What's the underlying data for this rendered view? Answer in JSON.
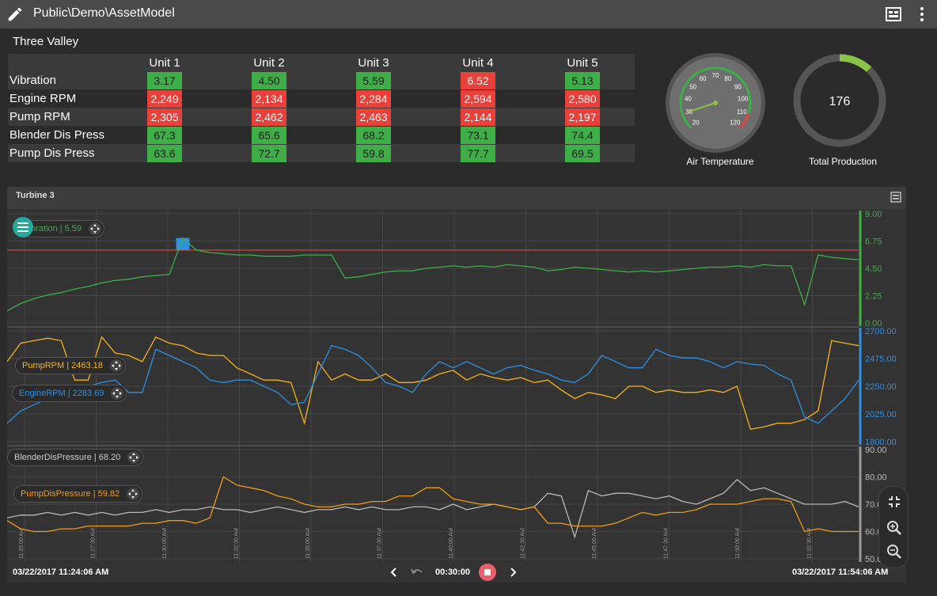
{
  "header": {
    "title": "Public\\Demo\\AssetModel"
  },
  "group_title": "Three Valley",
  "table": {
    "columns": [
      "Unit 1",
      "Unit 2",
      "Unit 3",
      "Unit 4",
      "Unit 5"
    ],
    "rows": [
      {
        "label": "Vibration",
        "cells": [
          {
            "v": "3.17",
            "s": "green"
          },
          {
            "v": "4.50",
            "s": "green"
          },
          {
            "v": "5.59",
            "s": "green"
          },
          {
            "v": "6.52",
            "s": "red"
          },
          {
            "v": "5.13",
            "s": "green"
          }
        ]
      },
      {
        "label": "Engine RPM",
        "cells": [
          {
            "v": "2,249",
            "s": "red"
          },
          {
            "v": "2,134",
            "s": "red"
          },
          {
            "v": "2,284",
            "s": "red"
          },
          {
            "v": "2,594",
            "s": "red"
          },
          {
            "v": "2,580",
            "s": "red"
          }
        ]
      },
      {
        "label": "Pump RPM",
        "cells": [
          {
            "v": "2,305",
            "s": "red"
          },
          {
            "v": "2,462",
            "s": "red"
          },
          {
            "v": "2,463",
            "s": "red"
          },
          {
            "v": "2,144",
            "s": "red"
          },
          {
            "v": "2,197",
            "s": "red"
          }
        ]
      },
      {
        "label": "Blender Dis Press",
        "cells": [
          {
            "v": "67.3",
            "s": "green"
          },
          {
            "v": "65.6",
            "s": "green"
          },
          {
            "v": "68.2",
            "s": "green"
          },
          {
            "v": "73.1",
            "s": "green"
          },
          {
            "v": "74.4",
            "s": "green"
          }
        ]
      },
      {
        "label": "Pump Dis Press",
        "cells": [
          {
            "v": "63.6",
            "s": "green"
          },
          {
            "v": "72.7",
            "s": "green"
          },
          {
            "v": "59.8",
            "s": "green"
          },
          {
            "v": "77.7",
            "s": "green"
          },
          {
            "v": "69.5",
            "s": "green"
          }
        ]
      }
    ]
  },
  "gauge": {
    "label": "Air Temperature",
    "ticks": [
      "20",
      "30",
      "40",
      "50",
      "60",
      "70",
      "80",
      "90",
      "100",
      "110",
      "120"
    ],
    "min": 20,
    "max": 120,
    "value": 30
  },
  "donut": {
    "label": "Total Production",
    "value": "176",
    "fraction": 0.12
  },
  "panel": {
    "title": "Turbine 3",
    "start_time": "03/22/2017 11:24:06 AM",
    "end_time": "03/22/2017 11:54:06 AM",
    "duration": "00:30:00"
  },
  "badges": {
    "vibration": "bration | 5.59",
    "pump_rpm": "PumpRPM | 2463.18",
    "engine_rpm": "EngineRPM | 2283.69",
    "blender": "BlenderDisPressure | 68.20",
    "pump_dis": "PumpDisPressure | 59.82"
  },
  "colors": {
    "green": "#3fae49",
    "red": "#e8403a",
    "blue": "#2f8fe0",
    "yellow": "#f5b21b",
    "orange": "#f09a1a",
    "gray": "#b9b9b9",
    "teal": "#27a89c"
  },
  "chart_data": {
    "type": "line",
    "x_ticks": [
      "11:25:00 AM",
      "11:27:30 AM",
      "11:30:00 AM",
      "11:32:30 AM",
      "11:35:00 AM",
      "11:37:30 AM",
      "11:40:00 AM",
      "11:42:30 AM",
      "11:45:00 AM",
      "11:47:30 AM",
      "11:50:00 AM",
      "11:52:30 AM"
    ],
    "panes": [
      {
        "name": "vibration",
        "yticks": [
          "9.00",
          "6.75",
          "4.50",
          "2.25",
          "0.00"
        ],
        "ylim": [
          0,
          9
        ],
        "threshold": 6.0,
        "series": [
          {
            "color": "green",
            "values": [
              1.0,
              1.6,
              2.0,
              2.3,
              2.5,
              2.8,
              3.0,
              3.3,
              3.5,
              3.6,
              3.8,
              3.9,
              4.0,
              7.0,
              6.0,
              5.8,
              5.7,
              5.6,
              5.6,
              5.5,
              5.5,
              5.5,
              5.6,
              5.6,
              5.6,
              3.7,
              3.8,
              4.0,
              4.2,
              4.3,
              4.3,
              4.5,
              4.6,
              4.7,
              4.6,
              4.7,
              4.6,
              4.8,
              4.7,
              4.6,
              4.3,
              4.4,
              4.6,
              4.5,
              4.4,
              4.3,
              4.2,
              4.3,
              4.2,
              4.3,
              4.4,
              4.5,
              4.6,
              4.6,
              4.7,
              4.6,
              4.8,
              4.7,
              4.7,
              1.5,
              5.6,
              5.4,
              5.3,
              5.2
            ]
          }
        ]
      },
      {
        "name": "rpm",
        "yticks": [
          "2700.00",
          "2475.00",
          "2250.00",
          "2025.00",
          "1800.00"
        ],
        "ylim": [
          1800,
          2700
        ],
        "series": [
          {
            "color": "yellow",
            "values": [
              2450,
              2600,
              2620,
              2640,
              2620,
              2300,
              2300,
              2650,
              2520,
              2500,
              2450,
              2650,
              2600,
              2580,
              2520,
              2500,
              2500,
              2400,
              2350,
              2300,
              2300,
              2280,
              1950,
              2450,
              2300,
              2350,
              2300,
              2300,
              2350,
              2280,
              2280,
              2300,
              2350,
              2380,
              2300,
              2350,
              2320,
              2300,
              2320,
              2280,
              2300,
              2220,
              2150,
              2200,
              2180,
              2150,
              2250,
              2250,
              2200,
              2220,
              2200,
              2200,
              2220,
              2200,
              2250,
              1900,
              1920,
              1950,
              1950,
              1980,
              2050,
              2620,
              2600,
              2580
            ]
          },
          {
            "color": "blue",
            "values": [
              1950,
              2050,
              2100,
              2150,
              2200,
              2250,
              2250,
              2280,
              2300,
              2200,
              2200,
              2550,
              2500,
              2450,
              2400,
              2300,
              2280,
              2300,
              2300,
              2250,
              2200,
              2100,
              2120,
              2350,
              2580,
              2550,
              2500,
              2400,
              2280,
              2250,
              2200,
              2350,
              2450,
              2400,
              2450,
              2400,
              2350,
              2400,
              2420,
              2380,
              2350,
              2300,
              2280,
              2350,
              2500,
              2450,
              2400,
              2400,
              2550,
              2500,
              2480,
              2480,
              2450,
              2400,
              2450,
              2430,
              2420,
              2350,
              2300,
              2000,
              1950,
              2050,
              2150,
              2300
            ]
          }
        ]
      },
      {
        "name": "pressure",
        "yticks": [
          "90.00",
          "80.00",
          "70.00",
          "60.00",
          "50.00"
        ],
        "ylim": [
          50,
          90
        ],
        "series": [
          {
            "color": "gray",
            "values": [
              65,
              66,
              66,
              67,
              66,
              67,
              66,
              67,
              66,
              67,
              67,
              68,
              67,
              68,
              68,
              69,
              68,
              68,
              67,
              68,
              69,
              68,
              67,
              68,
              68,
              69,
              68,
              69,
              68,
              68,
              69,
              69,
              68,
              70,
              68,
              69,
              70,
              69,
              68,
              69,
              74,
              73,
              58,
              75,
              73,
              74,
              74,
              73,
              72,
              73,
              71,
              70,
              72,
              74,
              79,
              75,
              76,
              74,
              72,
              70,
              70,
              70,
              71,
              69
            ]
          },
          {
            "color": "orange",
            "values": [
              64,
              61,
              60,
              60,
              61,
              61,
              62,
              62,
              62,
              62,
              63,
              63,
              64,
              64,
              63,
              65,
              80,
              77,
              76,
              75,
              73,
              72,
              70,
              69,
              69,
              70,
              70,
              71,
              71,
              73,
              73,
              76,
              76,
              72,
              71,
              70,
              70,
              69,
              68,
              69,
              63,
              63,
              62,
              62,
              62,
              63,
              65,
              67,
              66,
              67,
              67,
              68,
              70,
              70,
              70,
              71,
              72,
              72,
              71,
              60,
              61,
              60,
              60,
              60
            ]
          }
        ]
      }
    ]
  }
}
